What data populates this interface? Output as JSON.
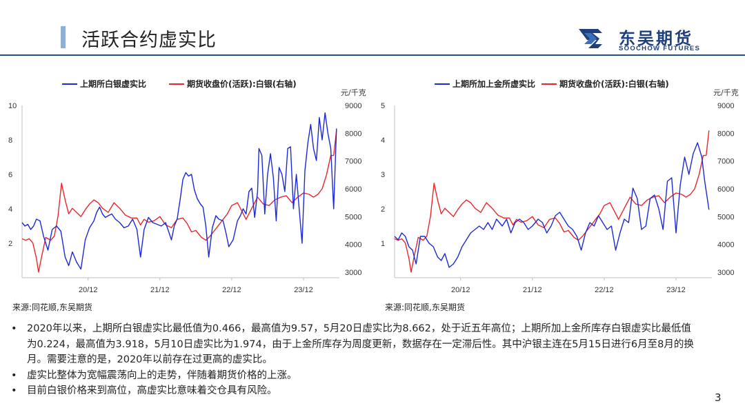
{
  "header": {
    "title": "活跃合约虚实比",
    "logo_cn": "东吴期货",
    "logo_en": "SOOCHOW FUTURES"
  },
  "colors": {
    "blue_series": "#1a28d8",
    "red_series": "#e8262a",
    "brand": "#1f3f7a"
  },
  "chart_data": [
    {
      "type": "line",
      "legend_position": "top",
      "grid": false,
      "x_tick_labels": [
        "20/12",
        "21/12",
        "22/12",
        "23/12"
      ],
      "right_axis_unit": "元/千克",
      "y_left_ticks": [
        2,
        4,
        6,
        8,
        10
      ],
      "y_left_range": [
        0,
        10
      ],
      "y_right_ticks": [
        3000,
        4000,
        5000,
        6000,
        7000,
        8000,
        9000
      ],
      "y_right_range": [
        2800,
        9000
      ],
      "series": [
        {
          "name": "上期所白银虚实比",
          "axis": "left",
          "color": "#1a28d8",
          "x": [
            2020.0,
            2020.04,
            2020.08,
            2020.12,
            2020.16,
            2020.2,
            2020.25,
            2020.3,
            2020.36,
            2020.42,
            2020.48,
            2020.54,
            2020.6,
            2020.65,
            2020.7,
            2020.76,
            2020.82,
            2020.88,
            2020.94,
            2021.0,
            2021.04,
            2021.08,
            2021.12,
            2021.16,
            2021.2,
            2021.25,
            2021.3,
            2021.36,
            2021.42,
            2021.48,
            2021.54,
            2021.6,
            2021.65,
            2021.7,
            2021.76,
            2021.82,
            2021.88,
            2021.94,
            2022.0,
            2022.04,
            2022.08,
            2022.12,
            2022.16,
            2022.2,
            2022.24,
            2022.28,
            2022.32,
            2022.36,
            2022.4,
            2022.44,
            2022.48,
            2022.52,
            2022.56,
            2022.6,
            2022.65,
            2022.7,
            2022.74,
            2022.8,
            2022.84,
            2022.88,
            2022.94,
            2023.0,
            2023.04,
            2023.08,
            2023.12,
            2023.16,
            2023.2,
            2023.24,
            2023.28,
            2023.3,
            2023.34,
            2023.38,
            2023.42,
            2023.46,
            2023.5,
            2023.54,
            2023.58,
            2023.62,
            2023.66,
            2023.7,
            2023.74,
            2023.78,
            2023.82,
            2023.86,
            2023.9,
            2023.94,
            2023.98,
            2024.02,
            2024.06,
            2024.1,
            2024.14,
            2024.18,
            2024.22,
            2024.26,
            2024.3,
            2024.34,
            2024.38
          ],
          "y": [
            3.2,
            3.0,
            3.1,
            2.8,
            3.0,
            3.4,
            3.3,
            2.4,
            1.6,
            2.8,
            3.0,
            2.7,
            1.2,
            0.7,
            1.5,
            0.9,
            0.5,
            2.2,
            2.9,
            3.3,
            3.8,
            4.1,
            3.7,
            3.5,
            3.6,
            3.7,
            3.4,
            3.2,
            2.9,
            3.0,
            3.4,
            2.8,
            1.2,
            2.8,
            3.5,
            3.2,
            3.1,
            3.0,
            3.2,
            2.7,
            2.2,
            3.0,
            3.4,
            4.5,
            5.7,
            6.1,
            5.9,
            6.0,
            5.1,
            4.6,
            4.3,
            4.1,
            3.0,
            1.2,
            2.9,
            3.6,
            3.4,
            3.3,
            2.6,
            1.8,
            2.2,
            3.3,
            3.6,
            4.0,
            3.7,
            5.0,
            5.2,
            3.5,
            5.0,
            7.5,
            7.1,
            3.7,
            6.0,
            7.2,
            5.8,
            3.3,
            6.4,
            6.0,
            5.0,
            7.5,
            7.6,
            4.0,
            6.0,
            4.0,
            2.0,
            6.2,
            7.8,
            8.9,
            7.5,
            6.8,
            9.3,
            8.0,
            9.57,
            8.4,
            7.5,
            4.0,
            8.66
          ]
        },
        {
          "name": "期货收盘价(活跃):白银(右轴)",
          "axis": "right",
          "color": "#e8262a",
          "x": [
            2020.0,
            2020.05,
            2020.1,
            2020.15,
            2020.2,
            2020.23,
            2020.28,
            2020.33,
            2020.4,
            2020.45,
            2020.5,
            2020.55,
            2020.6,
            2020.65,
            2020.7,
            2020.76,
            2020.82,
            2020.88,
            2020.94,
            2021.0,
            2021.06,
            2021.12,
            2021.2,
            2021.28,
            2021.36,
            2021.44,
            2021.52,
            2021.6,
            2021.65,
            2021.7,
            2021.76,
            2021.84,
            2021.92,
            2022.0,
            2022.08,
            2022.16,
            2022.24,
            2022.3,
            2022.36,
            2022.42,
            2022.5,
            2022.56,
            2022.62,
            2022.68,
            2022.74,
            2022.8,
            2022.86,
            2022.92,
            2023.0,
            2023.06,
            2023.12,
            2023.2,
            2023.28,
            2023.36,
            2023.44,
            2023.52,
            2023.6,
            2023.68,
            2023.76,
            2023.84,
            2023.92,
            2024.0,
            2024.06,
            2024.12,
            2024.18,
            2024.24,
            2024.3,
            2024.34,
            2024.38
          ],
          "y": [
            4200,
            4150,
            4200,
            4050,
            3500,
            3000,
            3650,
            4250,
            4150,
            4300,
            5000,
            6200,
            5600,
            5100,
            5300,
            5150,
            5000,
            5250,
            5450,
            5600,
            5500,
            5300,
            5150,
            5500,
            5300,
            5050,
            4950,
            4950,
            4700,
            4900,
            4800,
            4850,
            5000,
            4700,
            4600,
            4900,
            4950,
            4750,
            4450,
            4500,
            4250,
            4150,
            4300,
            4500,
            4700,
            4900,
            5100,
            5400,
            5500,
            5200,
            4900,
            5300,
            5700,
            5450,
            5400,
            5600,
            5700,
            5750,
            5500,
            5700,
            5850,
            5800,
            5700,
            5800,
            6000,
            6500,
            7200,
            7200,
            8100
          ]
        }
      ]
    },
    {
      "type": "line",
      "legend_position": "top",
      "grid": false,
      "x_tick_labels": [
        "20/12",
        "21/12",
        "22/12",
        "23/12"
      ],
      "right_axis_unit": "元/千克",
      "y_left_ticks": [
        1,
        2,
        3,
        4,
        5
      ],
      "y_left_range": [
        0,
        5
      ],
      "y_right_ticks": [
        3000,
        4000,
        5000,
        6000,
        7000,
        8000,
        9000
      ],
      "y_right_range": [
        2800,
        9000
      ],
      "series": [
        {
          "name": "上期所加上金所虚实比",
          "axis": "left",
          "color": "#1a28d8",
          "x": [
            2020.0,
            2020.05,
            2020.1,
            2020.15,
            2020.2,
            2020.25,
            2020.3,
            2020.36,
            2020.42,
            2020.48,
            2020.54,
            2020.6,
            2020.65,
            2020.7,
            2020.76,
            2020.82,
            2020.88,
            2020.94,
            2021.0,
            2021.06,
            2021.12,
            2021.18,
            2021.24,
            2021.3,
            2021.36,
            2021.42,
            2021.5,
            2021.56,
            2021.62,
            2021.68,
            2021.74,
            2021.8,
            2021.86,
            2021.92,
            2022.0,
            2022.06,
            2022.12,
            2022.18,
            2022.24,
            2022.3,
            2022.36,
            2022.42,
            2022.48,
            2022.54,
            2022.6,
            2022.66,
            2022.72,
            2022.78,
            2022.84,
            2022.9,
            2022.96,
            2023.02,
            2023.08,
            2023.14,
            2023.2,
            2023.26,
            2023.32,
            2023.38,
            2023.44,
            2023.5,
            2023.56,
            2023.62,
            2023.68,
            2023.74,
            2023.8,
            2023.86,
            2023.92,
            2023.98,
            2024.04,
            2024.1,
            2024.16,
            2024.22,
            2024.28,
            2024.32,
            2024.38
          ],
          "y": [
            1.2,
            1.1,
            1.3,
            1.2,
            0.9,
            0.8,
            0.4,
            1.2,
            1.2,
            1.0,
            0.9,
            0.6,
            0.5,
            0.7,
            0.3,
            0.4,
            0.6,
            0.9,
            1.1,
            1.3,
            1.4,
            1.5,
            1.4,
            1.6,
            1.4,
            1.7,
            1.5,
            1.7,
            1.3,
            1.6,
            1.7,
            1.6,
            1.4,
            1.5,
            1.7,
            1.6,
            1.3,
            1.5,
            1.8,
            1.9,
            1.7,
            1.5,
            1.4,
            1.2,
            0.8,
            1.3,
            1.6,
            1.5,
            1.8,
            1.6,
            1.4,
            1.5,
            0.8,
            1.3,
            1.7,
            1.6,
            2.6,
            2.3,
            1.4,
            1.5,
            2.3,
            2.4,
            2.0,
            1.4,
            2.8,
            2.9,
            1.3,
            2.7,
            3.5,
            3.0,
            3.6,
            3.918,
            3.5,
            2.8,
            1.974
          ]
        },
        {
          "name": "期货收盘价(活跃):白银(右轴)",
          "axis": "right",
          "color": "#e8262a",
          "x": [
            2020.0,
            2020.05,
            2020.1,
            2020.15,
            2020.2,
            2020.23,
            2020.28,
            2020.33,
            2020.4,
            2020.45,
            2020.5,
            2020.55,
            2020.6,
            2020.65,
            2020.7,
            2020.76,
            2020.82,
            2020.88,
            2020.94,
            2021.0,
            2021.06,
            2021.12,
            2021.2,
            2021.28,
            2021.36,
            2021.44,
            2021.52,
            2021.6,
            2021.65,
            2021.7,
            2021.76,
            2021.84,
            2021.92,
            2022.0,
            2022.08,
            2022.16,
            2022.24,
            2022.3,
            2022.36,
            2022.42,
            2022.5,
            2022.56,
            2022.62,
            2022.68,
            2022.74,
            2022.8,
            2022.86,
            2022.92,
            2023.0,
            2023.06,
            2023.12,
            2023.2,
            2023.28,
            2023.36,
            2023.44,
            2023.52,
            2023.6,
            2023.68,
            2023.76,
            2023.84,
            2023.92,
            2024.0,
            2024.06,
            2024.12,
            2024.18,
            2024.24,
            2024.3,
            2024.34,
            2024.38
          ],
          "y": [
            4200,
            4150,
            4200,
            4050,
            3500,
            3000,
            3650,
            4250,
            4150,
            4300,
            5000,
            6200,
            5600,
            5100,
            5300,
            5150,
            5000,
            5250,
            5450,
            5600,
            5500,
            5300,
            5150,
            5500,
            5300,
            5050,
            4950,
            4950,
            4700,
            4900,
            4800,
            4850,
            5000,
            4700,
            4600,
            4900,
            4950,
            4750,
            4450,
            4500,
            4250,
            4150,
            4300,
            4500,
            4700,
            4900,
            5100,
            5400,
            5500,
            5200,
            4900,
            5300,
            5700,
            5450,
            5400,
            5600,
            5700,
            5750,
            5500,
            5700,
            5850,
            5800,
            5700,
            5800,
            6000,
            6500,
            7200,
            7200,
            8100
          ]
        }
      ]
    }
  ],
  "sources": [
    "来源:同花顺,东吴期货",
    "来源:同花顺,东吴期货"
  ],
  "bullets": [
    "2020年以来，上期所白银虚实比最低值为0.466，最高值为9.57，5月20日虚实比为8.662，处于近五年高位；上期所加上金所库存白银虚实比最低值为0.224，最高值为3.918，5月10日虚实比为1.974，由于上金所库存为周度更新，数据存在一定滞后性。其中沪银主连在5月15日进行6月至8月的换月。需要注意的是，2020年以前存在过更高的虚实比。",
    "虚实比整体为宽幅震荡向上的走势，伴随着期货价格的上涨。",
    "目前白银价格来到高位，高虚实比意味着交仓具有风险。"
  ],
  "page_number": "3"
}
